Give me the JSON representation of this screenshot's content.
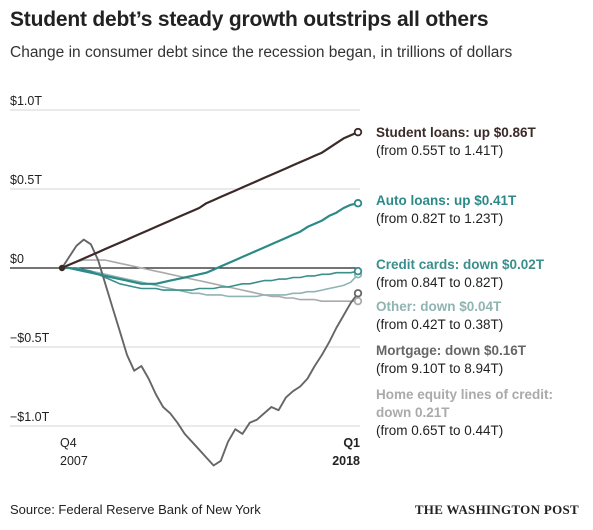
{
  "title": "Student debt’s steady growth outstrips all others",
  "subtitle": "Change in consumer debt since the recession began, in trillions of dollars",
  "source": "Source: Federal Reserve Bank of New York",
  "brand": "THE WASHINGTON POST",
  "colors": {
    "student": "#3b2a28",
    "auto": "#2b8a88",
    "credit": "#3a8f8c",
    "other": "#8fb4b2",
    "mortgage": "#666666",
    "heloc": "#aaaaaa"
  },
  "annotations": [
    {
      "key": "student",
      "head": "Student loans: up $0.86T",
      "sub": "(from 0.55T to 1.41T)"
    },
    {
      "key": "auto",
      "head": "Auto loans: up $0.41T",
      "sub": "(from 0.82T to 1.23T)"
    },
    {
      "key": "credit",
      "head": "Credit cards: down $0.02T",
      "sub": "(from 0.84T to 0.82T)"
    },
    {
      "key": "other",
      "head": "Other: down $0.04T",
      "sub": "(from 0.42T to 0.38T)"
    },
    {
      "key": "mortgage",
      "head": "Mortgage: down $0.16T",
      "sub": "(from 9.10T to 8.94T)"
    },
    {
      "key": "heloc",
      "head": "Home equity lines of credit: down 0.21T",
      "head1": "Home equity lines of credit:",
      "head2": "down 0.21T",
      "sub": "(from 0.65T to 0.44T)"
    }
  ],
  "chart_data": {
    "type": "line",
    "x_start": "Q4 2007",
    "x_end": "Q1 2018",
    "xlim": [
      0,
      41
    ],
    "ylim": [
      -1.25,
      1.05
    ],
    "y_ticks": [
      {
        "value": 1.0,
        "label": "$1.0T"
      },
      {
        "value": 0.5,
        "label": "$0.5T"
      },
      {
        "value": 0.0,
        "label": "$0"
      },
      {
        "value": -0.5,
        "label": "−$0.5T"
      },
      {
        "value": -1.0,
        "label": "−$1.0T"
      }
    ],
    "x_ticks": [
      {
        "q": 0,
        "line1": "Q4",
        "line2": "2007",
        "bold": false
      },
      {
        "q": 41,
        "line1": "Q1",
        "line2": "2018",
        "bold": true
      }
    ],
    "grid": true,
    "series": [
      {
        "name": "Student loans",
        "key": "student",
        "width": 2.2,
        "values": [
          0,
          0.02,
          0.04,
          0.06,
          0.08,
          0.1,
          0.12,
          0.14,
          0.16,
          0.18,
          0.2,
          0.22,
          0.24,
          0.26,
          0.28,
          0.3,
          0.32,
          0.34,
          0.36,
          0.38,
          0.41,
          0.43,
          0.45,
          0.47,
          0.49,
          0.51,
          0.53,
          0.55,
          0.57,
          0.59,
          0.61,
          0.63,
          0.65,
          0.67,
          0.69,
          0.71,
          0.73,
          0.76,
          0.79,
          0.82,
          0.84,
          0.86
        ]
      },
      {
        "name": "Auto loans",
        "key": "auto",
        "width": 2.2,
        "values": [
          0,
          0,
          -0.01,
          -0.02,
          -0.03,
          -0.04,
          -0.05,
          -0.06,
          -0.07,
          -0.08,
          -0.09,
          -0.1,
          -0.1,
          -0.1,
          -0.09,
          -0.08,
          -0.07,
          -0.06,
          -0.05,
          -0.04,
          -0.03,
          -0.01,
          0.01,
          0.03,
          0.05,
          0.07,
          0.09,
          0.11,
          0.13,
          0.15,
          0.17,
          0.19,
          0.21,
          0.23,
          0.26,
          0.28,
          0.3,
          0.33,
          0.35,
          0.38,
          0.4,
          0.41
        ]
      },
      {
        "name": "Credit cards",
        "key": "credit",
        "width": 1.6,
        "values": [
          0,
          0,
          0,
          -0.01,
          -0.02,
          -0.04,
          -0.06,
          -0.08,
          -0.1,
          -0.11,
          -0.12,
          -0.13,
          -0.13,
          -0.13,
          -0.14,
          -0.14,
          -0.14,
          -0.14,
          -0.14,
          -0.13,
          -0.13,
          -0.13,
          -0.12,
          -0.12,
          -0.11,
          -0.1,
          -0.1,
          -0.09,
          -0.08,
          -0.08,
          -0.07,
          -0.07,
          -0.06,
          -0.06,
          -0.05,
          -0.05,
          -0.04,
          -0.04,
          -0.03,
          -0.03,
          -0.03,
          -0.02
        ]
      },
      {
        "name": "Other",
        "key": "other",
        "width": 1.6,
        "values": [
          0,
          0,
          0,
          -0.01,
          -0.02,
          -0.03,
          -0.04,
          -0.05,
          -0.06,
          -0.07,
          -0.08,
          -0.09,
          -0.1,
          -0.11,
          -0.12,
          -0.13,
          -0.14,
          -0.15,
          -0.16,
          -0.16,
          -0.17,
          -0.17,
          -0.17,
          -0.18,
          -0.18,
          -0.18,
          -0.18,
          -0.18,
          -0.17,
          -0.17,
          -0.17,
          -0.17,
          -0.16,
          -0.16,
          -0.15,
          -0.15,
          -0.14,
          -0.13,
          -0.12,
          -0.11,
          -0.09,
          -0.04
        ]
      },
      {
        "name": "Mortgage",
        "key": "mortgage",
        "width": 1.9,
        "values": [
          0,
          0.07,
          0.14,
          0.18,
          0.15,
          0.05,
          -0.1,
          -0.25,
          -0.4,
          -0.55,
          -0.65,
          -0.62,
          -0.7,
          -0.8,
          -0.88,
          -0.92,
          -0.98,
          -1.05,
          -1.1,
          -1.15,
          -1.2,
          -1.25,
          -1.22,
          -1.1,
          -1.02,
          -1.05,
          -0.98,
          -0.96,
          -0.92,
          -0.88,
          -0.9,
          -0.82,
          -0.78,
          -0.75,
          -0.7,
          -0.62,
          -0.55,
          -0.47,
          -0.38,
          -0.3,
          -0.22,
          -0.16
        ]
      },
      {
        "name": "Home equity lines of credit",
        "key": "heloc",
        "width": 1.6,
        "values": [
          0,
          0.02,
          0.04,
          0.05,
          0.05,
          0.05,
          0.05,
          0.04,
          0.03,
          0.02,
          0.01,
          0,
          -0.01,
          -0.02,
          -0.03,
          -0.04,
          -0.05,
          -0.06,
          -0.07,
          -0.08,
          -0.09,
          -0.1,
          -0.11,
          -0.12,
          -0.13,
          -0.14,
          -0.15,
          -0.16,
          -0.17,
          -0.18,
          -0.18,
          -0.19,
          -0.19,
          -0.2,
          -0.2,
          -0.2,
          -0.21,
          -0.21,
          -0.21,
          -0.21,
          -0.21,
          -0.21
        ]
      }
    ]
  }
}
